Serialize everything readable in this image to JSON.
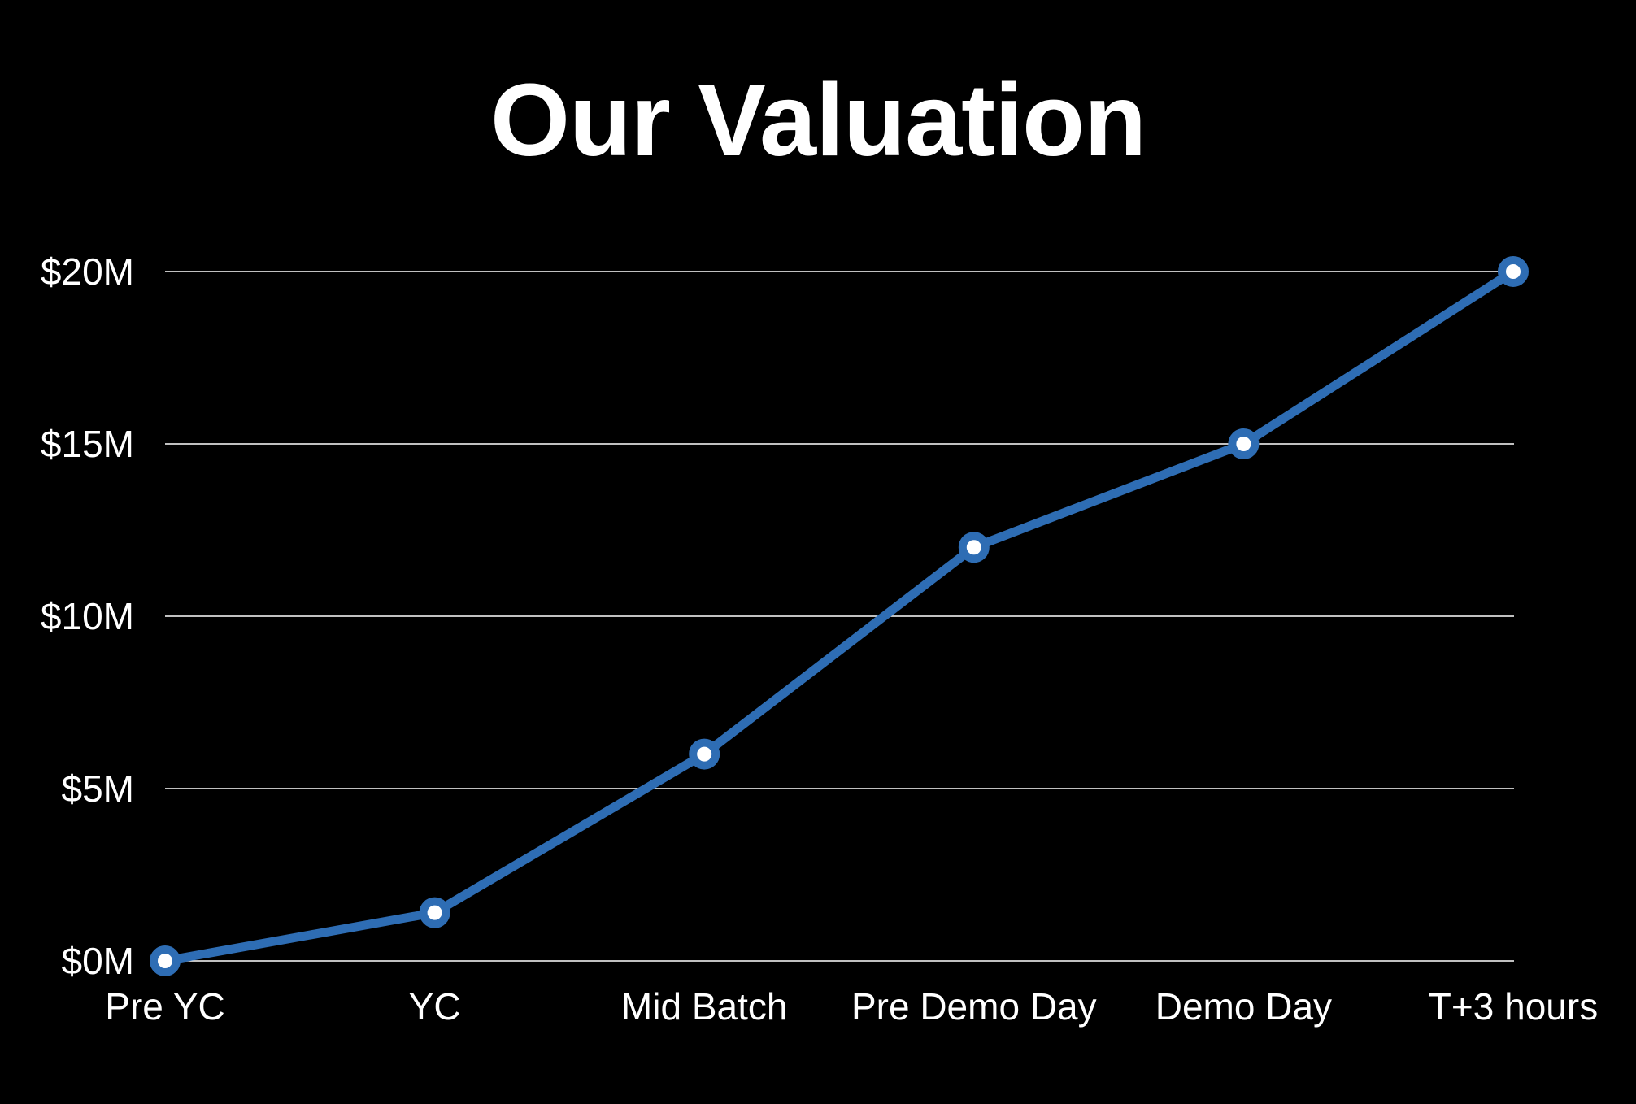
{
  "chart_data": {
    "type": "line",
    "title": "Our Valuation",
    "xlabel": "",
    "ylabel": "",
    "categories": [
      "Pre YC",
      "YC",
      "Mid Batch",
      "Pre Demo Day",
      "Demo Day",
      "T+3 hours"
    ],
    "series": [
      {
        "values": [
          0,
          1.4,
          6,
          12,
          15,
          20
        ]
      }
    ],
    "ylim": [
      0,
      20
    ],
    "yticks": [
      0,
      5,
      10,
      15,
      20
    ],
    "ytick_labels": [
      "$0M",
      "$5M",
      "$10M",
      "$15M",
      "$20M"
    ],
    "grid": true,
    "legend": "none",
    "colors": {
      "background": "#000000",
      "line": "#2e6db4",
      "marker_fill": "#ffffff",
      "grid": "#ffffff",
      "text": "#ffffff"
    }
  }
}
